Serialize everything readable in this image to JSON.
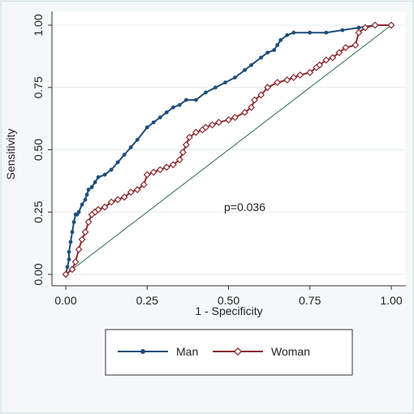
{
  "chart_data": {
    "type": "line",
    "xlabel": "1 - Specificity",
    "ylabel": "Sensitivity",
    "xlim": [
      0,
      1
    ],
    "ylim": [
      0,
      1
    ],
    "xticks": [
      "0.00",
      "0.25",
      "0.50",
      "0.75",
      "1.00"
    ],
    "yticks": [
      "0.00",
      "0.25",
      "0.50",
      "0.75",
      "1.00"
    ],
    "annotation": "p=0.036",
    "reference_line": {
      "x": [
        0,
        1
      ],
      "y": [
        0,
        1
      ],
      "color": "#2f6b55"
    },
    "legend_position": "bottom",
    "series": [
      {
        "name": "Man",
        "color": "#1f4e79",
        "marker": "filled-circle",
        "x": [
          0,
          0.005,
          0.01,
          0.01,
          0.015,
          0.02,
          0.025,
          0.03,
          0.035,
          0.04,
          0.05,
          0.06,
          0.065,
          0.07,
          0.08,
          0.09,
          0.1,
          0.12,
          0.14,
          0.16,
          0.18,
          0.2,
          0.22,
          0.25,
          0.27,
          0.29,
          0.31,
          0.33,
          0.35,
          0.37,
          0.4,
          0.43,
          0.46,
          0.49,
          0.52,
          0.55,
          0.57,
          0.6,
          0.62,
          0.64,
          0.65,
          0.66,
          0.68,
          0.7,
          0.75,
          0.8,
          0.85,
          0.9,
          0.95,
          1.0
        ],
        "y": [
          0,
          0.03,
          0.06,
          0.09,
          0.13,
          0.17,
          0.21,
          0.24,
          0.24,
          0.25,
          0.28,
          0.3,
          0.32,
          0.34,
          0.35,
          0.37,
          0.39,
          0.4,
          0.42,
          0.45,
          0.48,
          0.51,
          0.54,
          0.59,
          0.61,
          0.63,
          0.65,
          0.67,
          0.68,
          0.7,
          0.7,
          0.73,
          0.75,
          0.77,
          0.79,
          0.82,
          0.84,
          0.87,
          0.89,
          0.9,
          0.92,
          0.94,
          0.96,
          0.97,
          0.97,
          0.97,
          0.98,
          0.99,
          1.0,
          1.0
        ]
      },
      {
        "name": "Woman",
        "color": "#8b2a2f",
        "marker": "hollow-diamond",
        "x": [
          0,
          0.02,
          0.03,
          0.04,
          0.05,
          0.06,
          0.07,
          0.08,
          0.09,
          0.1,
          0.12,
          0.14,
          0.16,
          0.18,
          0.2,
          0.22,
          0.24,
          0.25,
          0.27,
          0.29,
          0.31,
          0.33,
          0.35,
          0.36,
          0.37,
          0.38,
          0.4,
          0.42,
          0.43,
          0.45,
          0.47,
          0.5,
          0.52,
          0.55,
          0.57,
          0.58,
          0.6,
          0.62,
          0.65,
          0.68,
          0.7,
          0.72,
          0.75,
          0.77,
          0.78,
          0.8,
          0.82,
          0.84,
          0.86,
          0.89,
          0.9,
          0.92,
          0.95,
          1.0
        ],
        "y": [
          0,
          0.02,
          0.05,
          0.1,
          0.14,
          0.17,
          0.21,
          0.24,
          0.25,
          0.26,
          0.27,
          0.29,
          0.3,
          0.31,
          0.33,
          0.34,
          0.36,
          0.4,
          0.41,
          0.42,
          0.43,
          0.44,
          0.46,
          0.49,
          0.52,
          0.55,
          0.57,
          0.58,
          0.59,
          0.6,
          0.61,
          0.62,
          0.63,
          0.65,
          0.67,
          0.7,
          0.72,
          0.75,
          0.77,
          0.78,
          0.79,
          0.8,
          0.81,
          0.83,
          0.84,
          0.86,
          0.87,
          0.89,
          0.91,
          0.92,
          0.97,
          0.99,
          1.0,
          1.0
        ]
      }
    ]
  }
}
